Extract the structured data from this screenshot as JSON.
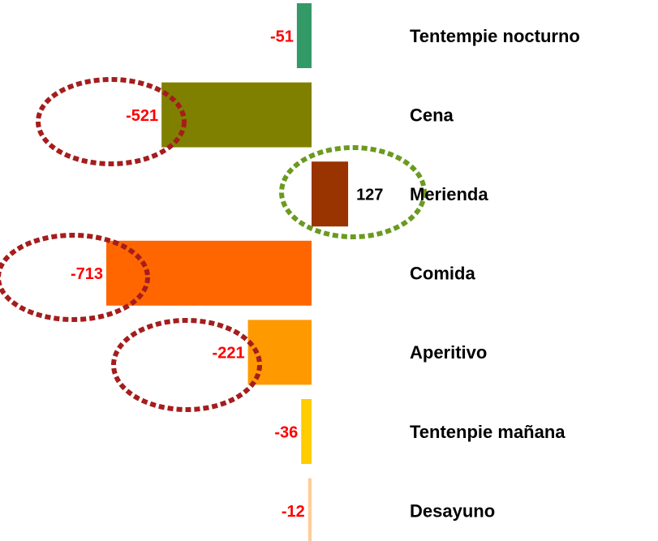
{
  "chart_data": {
    "type": "bar",
    "orientation": "horizontal",
    "categories": [
      "Tentempie nocturno",
      "Cena",
      "Merienda",
      "Comida",
      "Aperitivo",
      "Tentenpie mañana",
      "Desayuno"
    ],
    "values": [
      -51,
      -521,
      127,
      -713,
      -221,
      -36,
      -12
    ],
    "colors": [
      "#339966",
      "#808000",
      "#993300",
      "#ff6600",
      "#ff9900",
      "#ffcc00",
      "#ffcc99"
    ],
    "grid": false
  }
}
